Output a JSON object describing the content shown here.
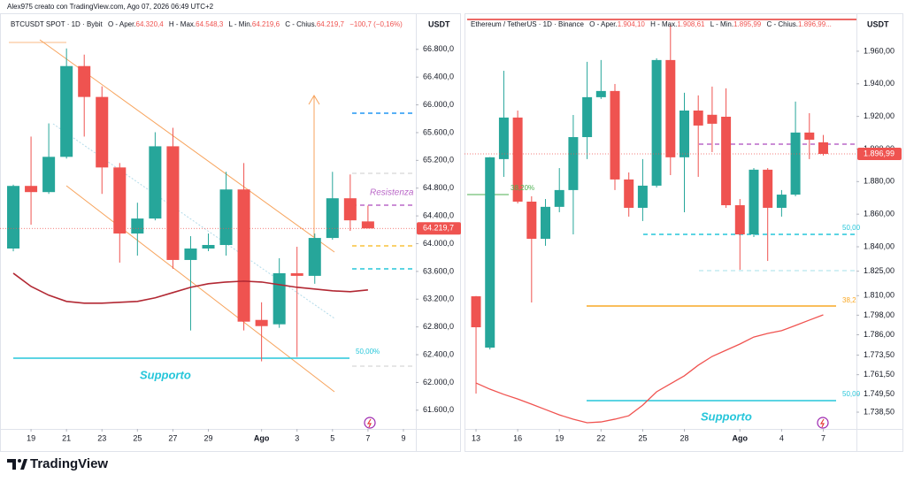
{
  "header": {
    "author": "Alex975 creato con TradingView.com, Ago 07, 2026 06:49 UTC+2"
  },
  "chart_data": [
    {
      "type": "candlestick",
      "legend": {
        "symbol": "BTCUSDT SPOT · 1D · Bybit",
        "items": [
          {
            "label": "O - Aper.",
            "value": "64.320,4"
          },
          {
            "label": "H - Max.",
            "value": "64.548,3"
          },
          {
            "label": "L - Min.",
            "value": "64.219,6"
          },
          {
            "label": "C - Chius.",
            "value": "64.219,7"
          }
        ],
        "change": "−100,7 (−0,16%)"
      },
      "currency": "USDT",
      "x": [
        0,
        1,
        2,
        3,
        4,
        5,
        6,
        7,
        8,
        9,
        10,
        11,
        12,
        13,
        14,
        15,
        16,
        17,
        18,
        19,
        20
      ],
      "open": [
        63930,
        64832,
        64743,
        65251,
        66559,
        66114,
        65098,
        64146,
        64362,
        65403,
        63765,
        63930,
        63981,
        64781,
        62901,
        62838,
        63574,
        63536,
        64082,
        64654,
        64320.4
      ],
      "high": [
        64850,
        65543,
        65733,
        66813,
        66724,
        66267,
        65162,
        64590,
        65606,
        65670,
        64108,
        64146,
        65035,
        65162,
        63155,
        63790,
        63955,
        64146,
        65035,
        64997,
        64548.3
      ],
      "low": [
        63890,
        64273,
        64717,
        65226,
        65543,
        64717,
        63727,
        63828,
        64336,
        63638,
        62749,
        63892,
        63828,
        62749,
        62304,
        62787,
        62368,
        63422,
        64057,
        64184,
        64219.6
      ],
      "close": [
        64832,
        64743,
        65251,
        66559,
        66114,
        65098,
        64146,
        64362,
        65403,
        63765,
        63930,
        63981,
        64781,
        62876,
        62812,
        63574,
        63536,
        64082,
        64654,
        64336,
        64219.7
      ],
      "up_color": "#26a69a",
      "down_color": "#ef5350",
      "ma": {
        "color": "#b22833",
        "values": [
          63574,
          63384,
          63257,
          63168,
          63142,
          63142,
          63155,
          63168,
          63219,
          63295,
          63371,
          63422,
          63447,
          63460,
          63447,
          63409,
          63371,
          63346,
          63320,
          63308,
          63333
        ]
      },
      "xlim": [
        -0.75,
        22.7
      ],
      "xticks": [
        {
          "value": 1,
          "label": "19"
        },
        {
          "value": 3,
          "label": "21"
        },
        {
          "value": 5,
          "label": "23"
        },
        {
          "value": 7,
          "label": "25"
        },
        {
          "value": 9,
          "label": "27"
        },
        {
          "value": 11,
          "label": "29"
        },
        {
          "value": 14,
          "label": "Ago"
        },
        {
          "value": 16,
          "label": "3"
        },
        {
          "value": 18,
          "label": "5"
        },
        {
          "value": 20,
          "label": "7"
        },
        {
          "value": 22,
          "label": "9"
        }
      ],
      "ylim": [
        61330,
        67320
      ],
      "yticks": [
        {
          "value": 66800,
          "label": "66.800,0"
        },
        {
          "value": 66400,
          "label": "66.400,0"
        },
        {
          "value": 66000,
          "label": "66.000,0"
        },
        {
          "value": 65600,
          "label": "65.600,0"
        },
        {
          "value": 65200,
          "label": "65.200,0"
        },
        {
          "value": 64800,
          "label": "64.800,0"
        },
        {
          "value": 64400,
          "label": "64.400,0"
        },
        {
          "value": 64000,
          "label": "64.000,0"
        },
        {
          "value": 63600,
          "label": "63.600,0"
        },
        {
          "value": 63200,
          "label": "63.200,0"
        },
        {
          "value": 62800,
          "label": "62.800,0"
        },
        {
          "value": 62400,
          "label": "62.400,0"
        },
        {
          "value": 62000,
          "label": "62.000,0"
        },
        {
          "value": 61600,
          "label": "61.600,0"
        }
      ],
      "last_price": {
        "value": 64219.7,
        "label": "64.219,7"
      },
      "annotations": [
        "Resistenza",
        "Supporto",
        "50,00%"
      ]
    },
    {
      "type": "candlestick",
      "legend": {
        "symbol": "Ethereum / TetherUS · 1D · Binance",
        "items": [
          {
            "label": "O - Aper.",
            "value": "1.904,10"
          },
          {
            "label": "H - Max.",
            "value": "1.908,61"
          },
          {
            "label": "L - Min.",
            "value": "1.895,99"
          },
          {
            "label": "C - Chius.",
            "value": "1.896,99..."
          }
        ],
        "change": ""
      },
      "currency": "USDT",
      "x": [
        0,
        1,
        2,
        3,
        4,
        5,
        6,
        7,
        8,
        9,
        10,
        11,
        12,
        13,
        14,
        15,
        16,
        17,
        18,
        19,
        20,
        21,
        22,
        23,
        24,
        25
      ],
      "open": [
        1809.6,
        1778.1,
        1893.8,
        1919.3,
        1867.7,
        1844.9,
        1864.5,
        1874.8,
        1907.3,
        1931.8,
        1935.6,
        1881.3,
        1863.9,
        1877.5,
        1954.6,
        1894.9,
        1923.6,
        1921,
        1919.8,
        1865.5,
        1847.6,
        1887.3,
        1863.9,
        1872,
        1910.1,
        1904.1
      ],
      "high": [
        1809.8,
        1895,
        1948,
        1923.6,
        1871,
        1869.3,
        1888.3,
        1920.9,
        1953.5,
        1954.6,
        1939.9,
        1885.6,
        1893.8,
        1955.7,
        1976.3,
        1934.5,
        1932.9,
        1938.3,
        1937.2,
        1869.3,
        1888.3,
        1888.3,
        1874.8,
        1929.1,
        1922,
        1908.61
      ],
      "low": [
        1749.9,
        1777,
        1882.9,
        1866.6,
        1805.8,
        1840.6,
        1861.2,
        1847.6,
        1893.8,
        1930.7,
        1874.8,
        1858.5,
        1855.8,
        1876.4,
        1884,
        1861.2,
        1882.9,
        1898.1,
        1863.9,
        1825.9,
        1846,
        1831.3,
        1858.5,
        1871,
        1893.8,
        1895.99
      ],
      "close": [
        1790.6,
        1894.9,
        1919.3,
        1867.7,
        1844.9,
        1864.5,
        1874.8,
        1907.3,
        1931.8,
        1935.6,
        1881.3,
        1863.9,
        1877.5,
        1954.6,
        1894.9,
        1923.6,
        1914.4,
        1915.5,
        1865.5,
        1847.6,
        1887.3,
        1863.9,
        1872,
        1910.1,
        1905.7,
        1896.99
      ],
      "up_color": "#26a69a",
      "down_color": "#ef5350",
      "ma": {
        "color": "#f05350",
        "values": [
          1756.4,
          1752.6,
          1749.4,
          1746.6,
          1743.4,
          1740.1,
          1736.8,
          1734.2,
          1732,
          1732.5,
          1734.2,
          1736.3,
          1742.8,
          1751,
          1755.9,
          1760.8,
          1767.3,
          1772.7,
          1776.5,
          1780.3,
          1784.6,
          1786.8,
          1788.5,
          1791.7,
          1795,
          1798.2
        ]
      },
      "xlim": [
        -0.83,
        27.39
      ],
      "xticks": [
        {
          "value": 0,
          "label": "13"
        },
        {
          "value": 3,
          "label": "16"
        },
        {
          "value": 6,
          "label": "19"
        },
        {
          "value": 9,
          "label": "22"
        },
        {
          "value": 12,
          "label": "25"
        },
        {
          "value": 15,
          "label": "28"
        },
        {
          "value": 19,
          "label": "Ago"
        },
        {
          "value": 22,
          "label": "4"
        },
        {
          "value": 25,
          "label": "7"
        }
      ],
      "ylim": [
        1728.2,
        1983.3
      ],
      "yticks": [
        {
          "value": 1960,
          "label": "1.960,00"
        },
        {
          "value": 1940,
          "label": "1.940,00"
        },
        {
          "value": 1920,
          "label": "1.920,00"
        },
        {
          "value": 1900,
          "label": "1.900,00"
        },
        {
          "value": 1880,
          "label": "1.880,00"
        },
        {
          "value": 1860,
          "label": "1.860,00"
        },
        {
          "value": 1840,
          "label": "1.840,00"
        },
        {
          "value": 1825,
          "label": "1.825,00"
        },
        {
          "value": 1810,
          "label": "1.810,00"
        },
        {
          "value": 1798,
          "label": "1.798,00"
        },
        {
          "value": 1786,
          "label": "1.786,00"
        },
        {
          "value": 1773.5,
          "label": "1.773,50"
        },
        {
          "value": 1761.5,
          "label": "1.761,50"
        },
        {
          "value": 1749.5,
          "label": "1.749,50"
        },
        {
          "value": 1738.5,
          "label": "1.738,50"
        }
      ],
      "last_price": {
        "value": 1896.99,
        "label": "1.896,99"
      },
      "annotations": [
        "Supporto",
        "38,20%",
        "50,00",
        "38,2",
        "50,00"
      ]
    }
  ],
  "footer": {
    "brand": "TradingView"
  }
}
